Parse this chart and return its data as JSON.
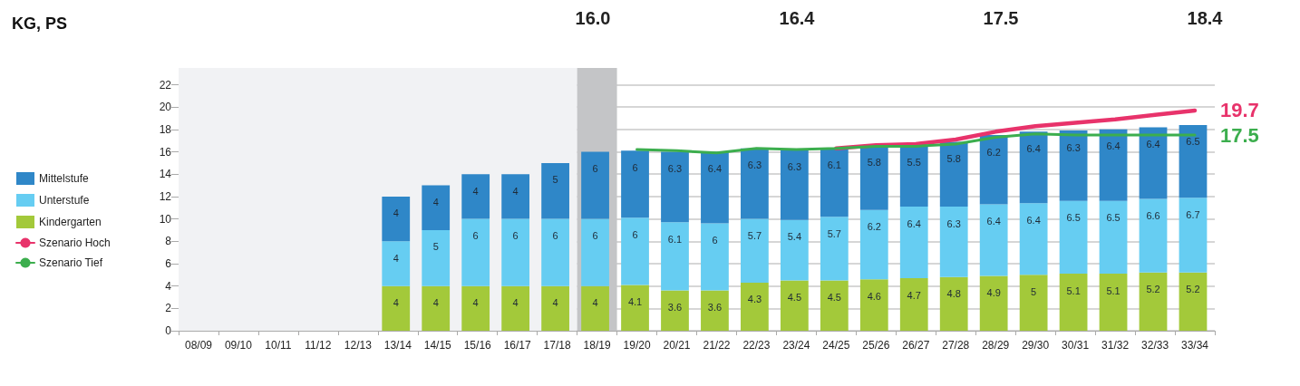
{
  "chart_data": {
    "type": "bar",
    "title": "KG, PS",
    "stacked": true,
    "data_labels": true,
    "grid": "y",
    "legend": "left",
    "marker": "none",
    "line_style": "solid",
    "categories": [
      "08/09",
      "09/10",
      "10/11",
      "11/12",
      "12/13",
      "13/14",
      "14/15",
      "15/16",
      "16/17",
      "17/18",
      "18/19",
      "19/20",
      "20/21",
      "21/22",
      "22/23",
      "23/24",
      "24/25",
      "25/26",
      "26/27",
      "27/28",
      "28/29",
      "29/30",
      "30/31",
      "31/32",
      "32/33",
      "33/34"
    ],
    "ylim": [
      0,
      23.5
    ],
    "yticks": [
      0,
      2,
      4,
      6,
      8,
      10,
      12,
      14,
      16,
      18,
      20,
      22
    ],
    "series": [
      {
        "name": "Kindergarten",
        "color": "#a3c93a",
        "values": [
          null,
          null,
          null,
          null,
          null,
          4,
          4,
          4,
          4,
          4,
          4,
          4.1,
          3.6,
          3.6,
          4.3,
          4.5,
          4.5,
          4.6,
          4.7,
          4.8,
          4.9,
          5,
          5.1,
          5.1,
          5.2,
          5.2
        ]
      },
      {
        "name": "Unterstufe",
        "color": "#66cdf2",
        "values": [
          null,
          null,
          null,
          null,
          null,
          4,
          5,
          6,
          6,
          6,
          6,
          6,
          6.1,
          6,
          5.7,
          5.4,
          5.7,
          6.2,
          6.4,
          6.3,
          6.4,
          6.4,
          6.5,
          6.5,
          6.6,
          6.7
        ]
      },
      {
        "name": "Mittelstufe",
        "color": "#2f87c8",
        "values": [
          null,
          null,
          null,
          null,
          null,
          4,
          4,
          4,
          4,
          5,
          6,
          6,
          6.3,
          6.4,
          6.3,
          6.3,
          6.1,
          5.8,
          5.5,
          5.8,
          6.2,
          6.4,
          6.3,
          6.4,
          6.4,
          6.5
        ]
      },
      {
        "name": "Szenario Hoch",
        "type": "line",
        "color": "#e8336b",
        "values": [
          null,
          null,
          null,
          null,
          null,
          null,
          null,
          null,
          null,
          null,
          null,
          null,
          null,
          null,
          null,
          null,
          16.3,
          16.6,
          16.7,
          17.1,
          17.8,
          18.3,
          18.6,
          18.9,
          19.3,
          19.7
        ],
        "value_labels": [
          null,
          null,
          null,
          null,
          null,
          null,
          null,
          null,
          null,
          null,
          null,
          null,
          null,
          null,
          null,
          null,
          null,
          null,
          null,
          null,
          null,
          null,
          null,
          null,
          null,
          "19.7"
        ]
      },
      {
        "name": "Szenario Tief",
        "type": "line",
        "color": "#3cae4e",
        "values": [
          null,
          null,
          null,
          null,
          null,
          null,
          null,
          null,
          null,
          null,
          null,
          16.2,
          16.1,
          15.9,
          16.3,
          16.2,
          16.3,
          16.5,
          16.5,
          16.7,
          17.3,
          17.6,
          17.5,
          17.5,
          17.5,
          17.5
        ],
        "value_labels": [
          null,
          null,
          null,
          null,
          null,
          null,
          null,
          null,
          null,
          null,
          null,
          null,
          null,
          null,
          null,
          null,
          null,
          null,
          null,
          null,
          null,
          null,
          null,
          null,
          null,
          "17.5"
        ]
      }
    ],
    "bands": [
      {
        "axis": "x",
        "from": "08/09",
        "to": "17/18",
        "color": "#f1f2f4"
      },
      {
        "axis": "x",
        "from": "18/19",
        "to": "18/19",
        "color": "#c4c5c7"
      }
    ],
    "annotations": [
      "16.0",
      "16.4",
      "17.5",
      "18.4"
    ]
  }
}
